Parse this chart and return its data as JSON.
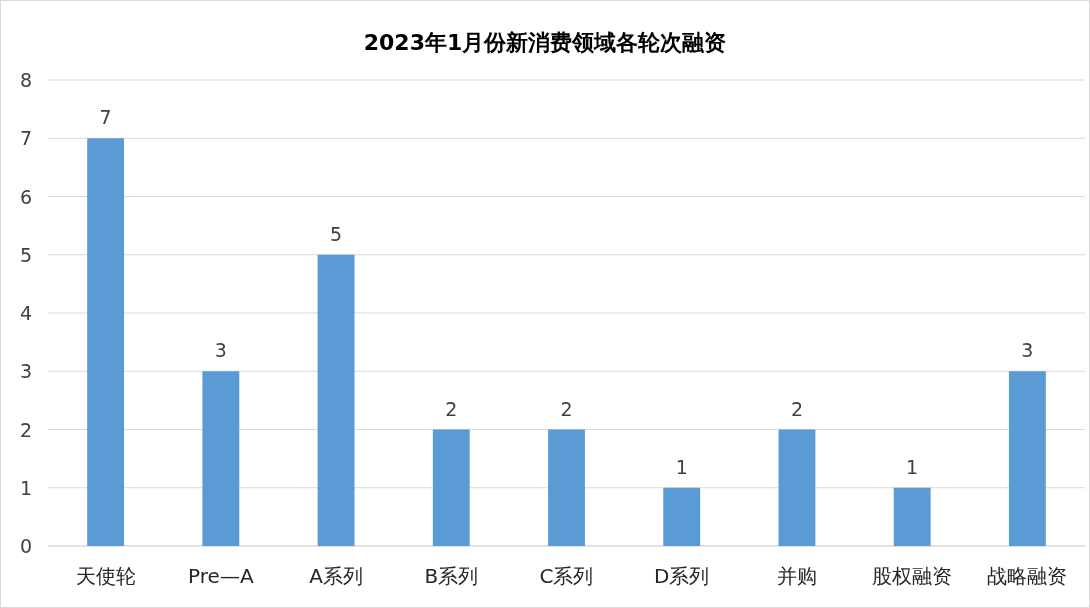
{
  "chart_data": {
    "type": "bar",
    "title": "2023年1月份新消费领域各轮次融资",
    "categories": [
      "天使轮",
      "Pre—A",
      "A系列",
      "B系列",
      "C系列",
      "D系列",
      "并购",
      "股权融资",
      "战略融资"
    ],
    "values": [
      7,
      3,
      5,
      2,
      2,
      1,
      2,
      1,
      3
    ],
    "color": "#5b9bd5",
    "ylim": [
      0,
      8
    ],
    "yticks": [
      0,
      1,
      2,
      3,
      4,
      5,
      6,
      7,
      8
    ],
    "grid": "y",
    "data_labels": true
  }
}
